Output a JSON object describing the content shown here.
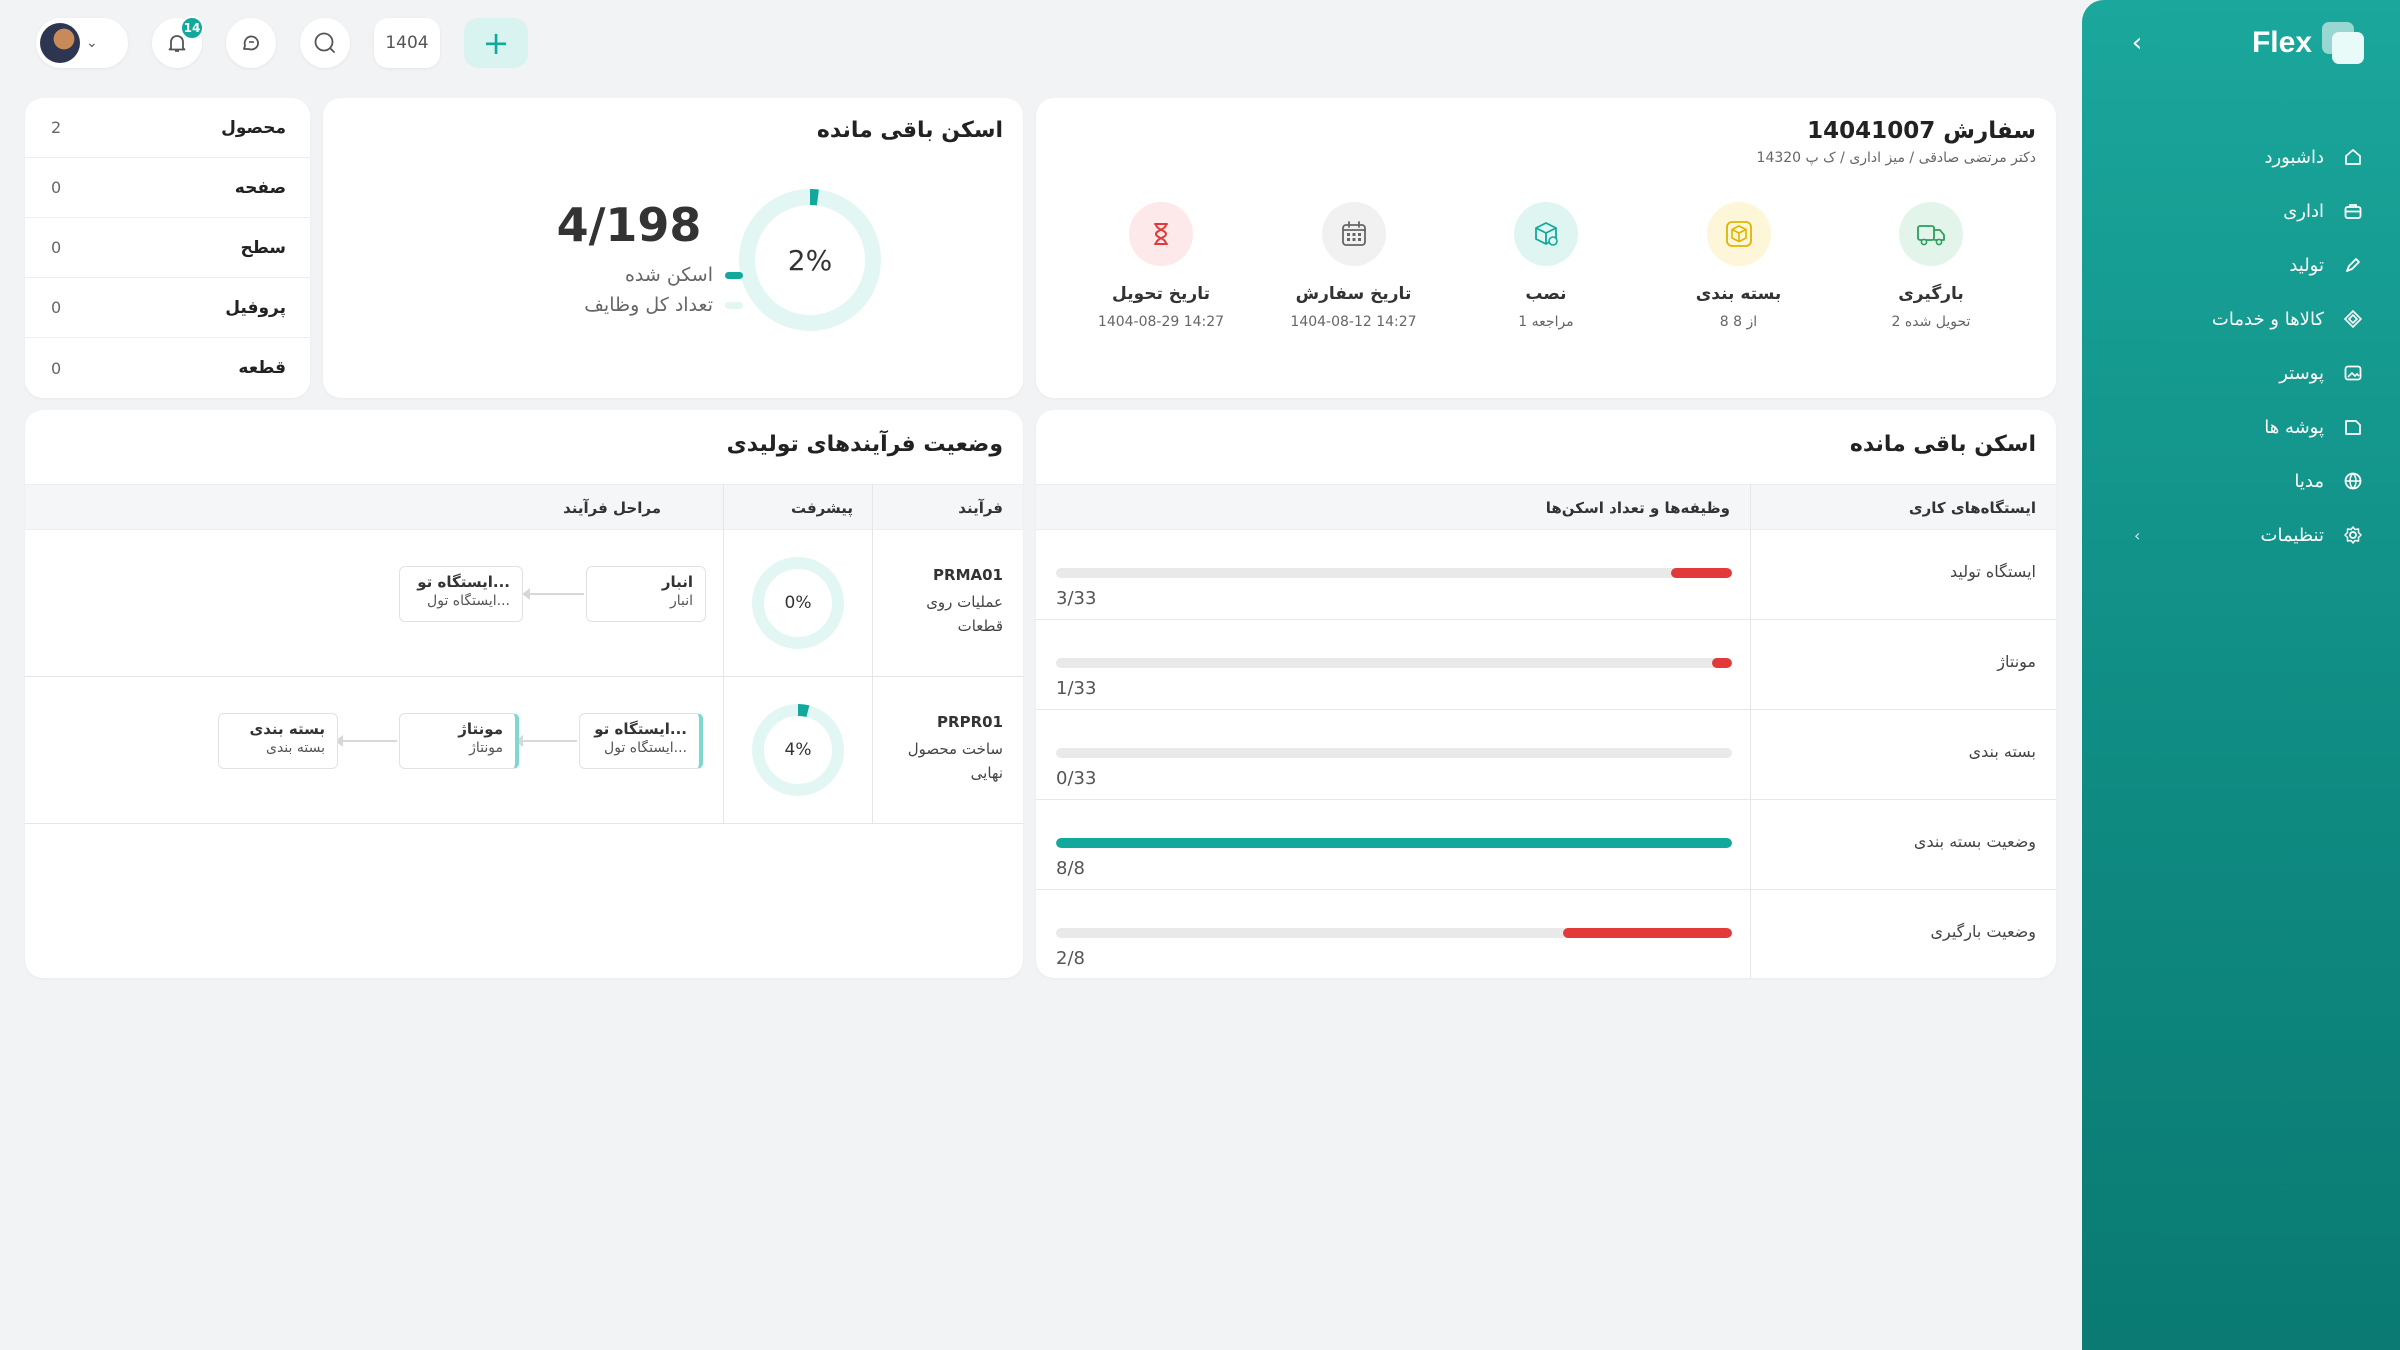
{
  "sidebar": {
    "brand": "Flex",
    "items": [
      {
        "label": "داشبورد",
        "icon": "home-icon"
      },
      {
        "label": "اداری",
        "icon": "briefcase-icon"
      },
      {
        "label": "تولید",
        "icon": "pen-icon"
      },
      {
        "label": "کالاها و خدمات",
        "icon": "diamond-icon"
      },
      {
        "label": "پوستر",
        "icon": "image-icon"
      },
      {
        "label": "پوشه ها",
        "icon": "folder-icon"
      },
      {
        "label": "مدیا",
        "icon": "globe-icon"
      },
      {
        "label": "تنظیمات",
        "icon": "gear-icon"
      }
    ]
  },
  "topbar": {
    "notifications_count": "14",
    "year": "1404",
    "add_label": "+"
  },
  "counts": [
    {
      "label": "محصول",
      "value": "2"
    },
    {
      "label": "صفحه",
      "value": "0"
    },
    {
      "label": "سطح",
      "value": "0"
    },
    {
      "label": "پروفیل",
      "value": "0"
    },
    {
      "label": "قطعه",
      "value": "0"
    }
  ],
  "scan_summary": {
    "title": "اسکن باقی مانده",
    "number": "4/198",
    "percent": "2%",
    "percent_value": 0.02,
    "legend_scanned": "اسکن شده",
    "legend_total": "تعداد کل وظایف",
    "colors": {
      "scanned": "#12a99c",
      "total": "#e2f6f4"
    }
  },
  "order": {
    "title": "سفارش 14041007",
    "subtitle": "دکتر مرتضی صادقی / میز اداری / ک پ 14320",
    "steps": [
      {
        "label": "بارگیری",
        "sub": "2 تحویل شده",
        "icon": "truck-icon",
        "bg": "#e3f5ea",
        "fg": "#2aa05a"
      },
      {
        "label": "بسته بندی",
        "sub": "8 از 8",
        "icon": "box-icon",
        "bg": "#fdf6d8",
        "fg": "#e0b400"
      },
      {
        "label": "نصب",
        "sub": "1 مراجعه",
        "icon": "install-box-icon",
        "bg": "#dff5f2",
        "fg": "#12a99c"
      },
      {
        "label": "تاریخ سفارش",
        "sub": "1404-08-12 14:27",
        "icon": "calendar-icon",
        "bg": "#f1f1f2",
        "fg": "#666666"
      },
      {
        "label": "تاریخ تحویل",
        "sub": "1404-08-29 14:27",
        "icon": "hourglass-icon",
        "bg": "#fde9e9",
        "fg": "#e23a3a"
      }
    ]
  },
  "processes": {
    "title": "وضعیت فرآیندهای تولیدی",
    "headers": {
      "process": "فرآیند",
      "progress": "پیشرفت",
      "stages": "مراحل فرآیند"
    },
    "rows": [
      {
        "code": "PRMA01",
        "desc": "عملیات روی قطعات",
        "progress": "0%",
        "progress_value": 0.0,
        "stages": [
          {
            "title": "انبار",
            "sub": "انبار",
            "accent": false
          },
          {
            "title": "ایستگاه تو...",
            "sub": "ایستگاه تول...",
            "accent": false
          }
        ]
      },
      {
        "code": "PRPR01",
        "desc": "ساخت محصول نهایی",
        "progress": "4%",
        "progress_value": 0.04,
        "stages": [
          {
            "title": "ایستگاه تو...",
            "sub": "ایستگاه تول...",
            "accent": true
          },
          {
            "title": "مونتاژ",
            "sub": "مونتاژ",
            "accent": true
          },
          {
            "title": "بسته بندی",
            "sub": "بسته بندی",
            "accent": false
          }
        ]
      }
    ]
  },
  "stations": {
    "title": "اسکن باقی مانده",
    "headers": {
      "station": "ایستگاه‌های کاری",
      "tasks": "وظیفه‌ها و تعداد اسکن‌ها"
    },
    "rows": [
      {
        "name": "ایستگاه تولید",
        "count": "3/33",
        "done": 3,
        "total": 33,
        "color": "#e23a3a"
      },
      {
        "name": "مونتاژ",
        "count": "1/33",
        "done": 1,
        "total": 33,
        "color": "#e23a3a"
      },
      {
        "name": "بسته بندی",
        "count": "0/33",
        "done": 0,
        "total": 33,
        "color": "#e23a3a"
      },
      {
        "name": "وضعیت بسته بندی",
        "count": "8/8",
        "done": 8,
        "total": 8,
        "color": "#12a99c"
      },
      {
        "name": "وضعیت بارگیری",
        "count": "2/8",
        "done": 2,
        "total": 8,
        "color": "#e23a3a"
      }
    ]
  }
}
